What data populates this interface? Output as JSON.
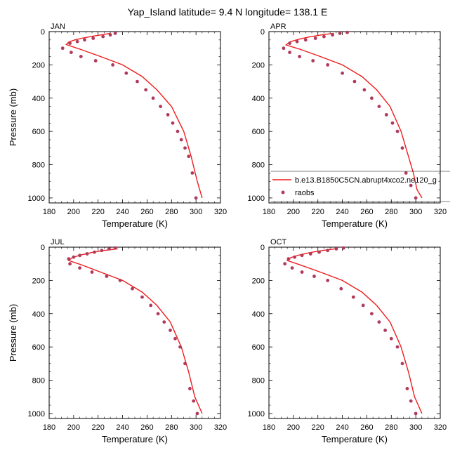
{
  "title": "Yap_Island  latitude= 9.4 N longitude= 138.1 E",
  "legend": {
    "model_label": "b.e13.B1850C5CN.abrupt4xco2.ne120_g",
    "obs_label": "raobs",
    "model_color": "#ee1c1c",
    "obs_color": "#b03a5b"
  },
  "chart_data": [
    {
      "type": "line",
      "panel": "JAN",
      "title": "JAN",
      "xlabel": "Temperature (K)",
      "ylabel": "Pressure (mb)",
      "xlim": [
        180,
        320
      ],
      "ylim": [
        1030,
        0
      ],
      "xticks": [
        180,
        200,
        220,
        240,
        260,
        280,
        300,
        320
      ],
      "yticks": [
        0,
        200,
        400,
        600,
        800,
        1000
      ],
      "series": [
        {
          "name": "b.e13.B1850C5CN.abrupt4xco2.ne120_g",
          "style": "line",
          "x": [
            230,
            224,
            216,
            208,
            201,
            196,
            194,
            205,
            222,
            240,
            256,
            268,
            280,
            290,
            296,
            301,
            305
          ],
          "y": [
            10,
            18,
            27,
            38,
            50,
            63,
            78,
            105,
            150,
            200,
            270,
            350,
            450,
            600,
            750,
            900,
            1000
          ]
        },
        {
          "name": "raobs",
          "style": "markers",
          "x": [
            234,
            230,
            224,
            216,
            209,
            203,
            197,
            191,
            198,
            206,
            218,
            232,
            243,
            252,
            259,
            265,
            271,
            277,
            281,
            285,
            288,
            291,
            294,
            297,
            300
          ],
          "y": [
            10,
            20,
            30,
            40,
            50,
            60,
            70,
            100,
            125,
            150,
            175,
            200,
            250,
            300,
            350,
            400,
            450,
            500,
            550,
            600,
            650,
            700,
            750,
            850,
            1000
          ]
        }
      ]
    },
    {
      "type": "line",
      "panel": "APR",
      "title": "APR",
      "xlabel": "Temperature (K)",
      "ylabel": "",
      "xlim": [
        180,
        320
      ],
      "ylim": [
        1030,
        0
      ],
      "xticks": [
        180,
        200,
        220,
        240,
        260,
        280,
        300,
        320
      ],
      "yticks": [
        0,
        200,
        400,
        600,
        800,
        1000
      ],
      "series": [
        {
          "name": "b.e13.B1850C5CN.abrupt4xco2.ne120_g",
          "style": "line",
          "x": [
            233,
            223,
            213,
            204,
            197,
            194,
            205,
            222,
            240,
            256,
            268,
            279,
            288,
            294,
            298,
            301,
            305
          ],
          "y": [
            10,
            20,
            32,
            47,
            62,
            80,
            105,
            150,
            200,
            270,
            350,
            450,
            600,
            750,
            850,
            950,
            1000
          ]
        },
        {
          "name": "raobs",
          "style": "markers",
          "x": [
            244,
            238,
            232,
            225,
            218,
            210,
            203,
            197,
            192,
            197,
            205,
            216,
            228,
            240,
            250,
            258,
            264,
            270,
            276,
            281,
            285,
            289,
            292,
            296,
            300
          ],
          "y": [
            5,
            10,
            20,
            30,
            40,
            50,
            60,
            70,
            100,
            125,
            150,
            175,
            200,
            250,
            300,
            350,
            400,
            450,
            500,
            550,
            600,
            700,
            850,
            925,
            1000
          ]
        }
      ]
    },
    {
      "type": "line",
      "panel": "JUL",
      "title": "JUL",
      "xlabel": "Temperature (K)",
      "ylabel": "Pressure (mb)",
      "xlim": [
        180,
        320
      ],
      "ylim": [
        1030,
        0
      ],
      "xticks": [
        180,
        200,
        220,
        240,
        260,
        280,
        300,
        320
      ],
      "yticks": [
        0,
        200,
        400,
        600,
        800,
        1000
      ],
      "series": [
        {
          "name": "b.e13.B1850C5CN.abrupt4xco2.ne120_g",
          "style": "line",
          "x": [
            236,
            225,
            215,
            206,
            199,
            196,
            206,
            222,
            240,
            256,
            268,
            279,
            288,
            294,
            299,
            305
          ],
          "y": [
            10,
            20,
            32,
            47,
            62,
            80,
            105,
            150,
            200,
            270,
            350,
            450,
            600,
            750,
            900,
            1000
          ]
        },
        {
          "name": "raobs",
          "style": "markers",
          "x": [
            234,
            229,
            223,
            217,
            211,
            205,
            200,
            196,
            197,
            205,
            215,
            227,
            238,
            248,
            256,
            263,
            269,
            274,
            279,
            283,
            287,
            291,
            295,
            298,
            301
          ],
          "y": [
            5,
            10,
            20,
            30,
            40,
            50,
            60,
            70,
            100,
            125,
            150,
            175,
            200,
            250,
            300,
            350,
            400,
            450,
            500,
            550,
            600,
            700,
            850,
            925,
            1000
          ]
        }
      ]
    },
    {
      "type": "line",
      "panel": "OCT",
      "title": "OCT",
      "xlabel": "Temperature (K)",
      "ylabel": "",
      "xlim": [
        180,
        320
      ],
      "ylim": [
        1030,
        0
      ],
      "xticks": [
        180,
        200,
        220,
        240,
        260,
        280,
        300,
        320
      ],
      "yticks": [
        0,
        200,
        400,
        600,
        800,
        1000
      ],
      "series": [
        {
          "name": "b.e13.B1850C5CN.abrupt4xco2.ne120_g",
          "style": "line",
          "x": [
            234,
            224,
            214,
            205,
            198,
            195,
            205,
            222,
            240,
            256,
            268,
            279,
            288,
            294,
            299,
            305
          ],
          "y": [
            10,
            20,
            32,
            47,
            62,
            80,
            105,
            150,
            200,
            270,
            350,
            450,
            600,
            750,
            900,
            1000
          ]
        },
        {
          "name": "raobs",
          "style": "markers",
          "x": [
            241,
            235,
            228,
            221,
            214,
            207,
            201,
            196,
            193,
            199,
            207,
            217,
            228,
            239,
            249,
            257,
            264,
            270,
            275,
            280,
            285,
            289,
            293,
            296,
            300
          ],
          "y": [
            5,
            10,
            20,
            30,
            40,
            50,
            60,
            70,
            100,
            125,
            150,
            175,
            200,
            250,
            300,
            350,
            400,
            450,
            500,
            550,
            600,
            700,
            850,
            925,
            1000
          ]
        }
      ]
    }
  ]
}
